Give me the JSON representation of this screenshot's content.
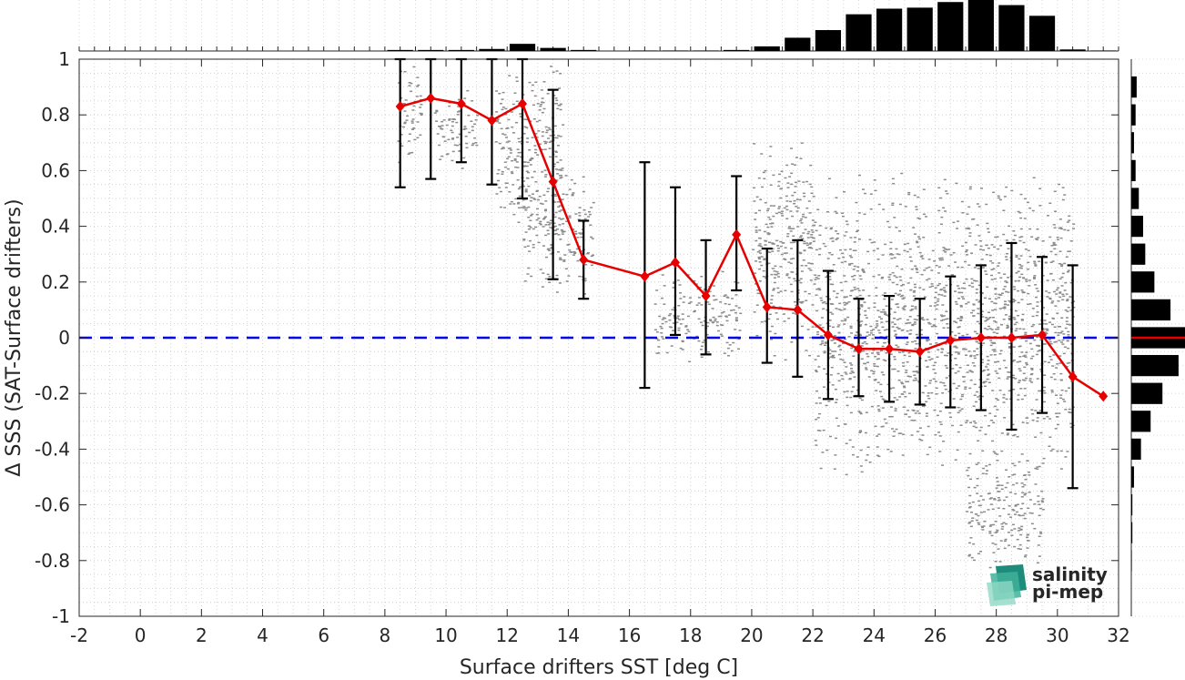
{
  "chart_data": {
    "type": "scatter",
    "xlabel": "Surface drifters SST [deg C]",
    "ylabel": "Δ SSS (SAT-Surface drifters)",
    "xlim": [
      -2,
      32
    ],
    "ylim": [
      -1,
      1
    ],
    "xticks": [
      "-2",
      "0",
      "2",
      "4",
      "6",
      "8",
      "10",
      "12",
      "14",
      "16",
      "18",
      "20",
      "22",
      "24",
      "26",
      "28",
      "30",
      "32"
    ],
    "yticks": [
      "-1",
      "-0.8",
      "-0.6",
      "-0.4",
      "-0.2",
      "0",
      "0.2",
      "0.4",
      "0.6",
      "0.8",
      "1"
    ],
    "grid": true,
    "reference_line": {
      "y": 0,
      "color": "#0000e6",
      "style": "dashed"
    },
    "binned_mean": {
      "color": "#e60000",
      "x": [
        8.5,
        9.5,
        10.5,
        11.5,
        12.5,
        13.5,
        14.5,
        16.5,
        17.5,
        18.5,
        19.5,
        20.5,
        21.5,
        22.5,
        23.5,
        24.5,
        25.5,
        26.5,
        27.5,
        28.5,
        29.5,
        30.5,
        31.5
      ],
      "y": [
        0.83,
        0.86,
        0.84,
        0.78,
        0.84,
        0.56,
        0.28,
        0.22,
        0.27,
        0.15,
        0.37,
        0.11,
        0.1,
        0.01,
        -0.04,
        -0.04,
        -0.05,
        -0.01,
        0.0,
        0.0,
        0.01,
        -0.14,
        -0.21
      ],
      "err_low": [
        0.54,
        0.57,
        0.63,
        0.55,
        0.5,
        0.21,
        0.14,
        -0.18,
        0.01,
        -0.06,
        0.17,
        -0.09,
        -0.14,
        -0.22,
        -0.21,
        -0.23,
        -0.24,
        -0.25,
        -0.26,
        -0.33,
        -0.27,
        -0.54,
        null
      ],
      "err_high": [
        1.0,
        1.0,
        1.0,
        1.0,
        1.0,
        0.89,
        0.42,
        0.63,
        0.54,
        0.35,
        0.58,
        0.32,
        0.35,
        0.24,
        0.14,
        0.15,
        0.14,
        0.22,
        0.26,
        0.34,
        0.29,
        0.26,
        null
      ]
    },
    "scatter_color": "#8c8c8c",
    "scatter_clusters": [
      {
        "xmin": 8.4,
        "xmax": 9.2,
        "ymin": 0.62,
        "ymax": 1.0
      },
      {
        "xmin": 9.6,
        "xmax": 11.0,
        "ymin": 0.6,
        "ymax": 0.9
      },
      {
        "xmin": 11.6,
        "xmax": 13.8,
        "ymin": 0.35,
        "ymax": 1.0
      },
      {
        "xmin": 12.5,
        "xmax": 14.8,
        "ymin": 0.15,
        "ymax": 0.6
      },
      {
        "xmin": 16.8,
        "xmax": 19.6,
        "ymin": -0.1,
        "ymax": 0.25
      },
      {
        "xmin": 20.0,
        "xmax": 22.0,
        "ymin": -0.1,
        "ymax": 0.75
      },
      {
        "xmin": 22.0,
        "xmax": 30.5,
        "ymin": -0.5,
        "ymax": 0.6
      },
      {
        "xmin": 27.0,
        "xmax": 29.5,
        "ymin": -0.85,
        "ymax": -0.4
      }
    ],
    "hist_top": {
      "bin_centers": [
        8.5,
        9.5,
        10.5,
        11.5,
        12.5,
        13.5,
        14.5,
        16.5,
        17.5,
        18.5,
        19.5,
        20.5,
        21.5,
        22.5,
        23.5,
        24.5,
        25.5,
        26.5,
        27.5,
        28.5,
        29.5,
        30.5,
        31.5
      ],
      "counts": [
        0.02,
        0.02,
        0.02,
        0.04,
        0.14,
        0.06,
        0.02,
        0.01,
        0.01,
        0.01,
        0.02,
        0.09,
        0.26,
        0.41,
        0.72,
        0.83,
        0.85,
        0.96,
        1.0,
        0.9,
        0.69,
        0.03,
        0.01
      ],
      "color": "#000000"
    },
    "hist_right": {
      "bin_centers": [
        0.9,
        0.8,
        0.7,
        0.6,
        0.5,
        0.4,
        0.3,
        0.2,
        0.1,
        0.0,
        -0.1,
        -0.2,
        -0.3,
        -0.4,
        -0.5,
        -0.6,
        -0.7,
        -0.8
      ],
      "counts": [
        0.1,
        0.08,
        0.05,
        0.08,
        0.14,
        0.22,
        0.26,
        0.43,
        0.73,
        1.0,
        0.88,
        0.58,
        0.36,
        0.18,
        0.05,
        0.02,
        0.02,
        0.01
      ],
      "mean_line_y": 0.0,
      "mean_line_color": "#e60000",
      "color": "#000000"
    }
  },
  "logo": {
    "line1": "salinity",
    "line2": "pi-mep",
    "text_color": "#1fa38e"
  }
}
